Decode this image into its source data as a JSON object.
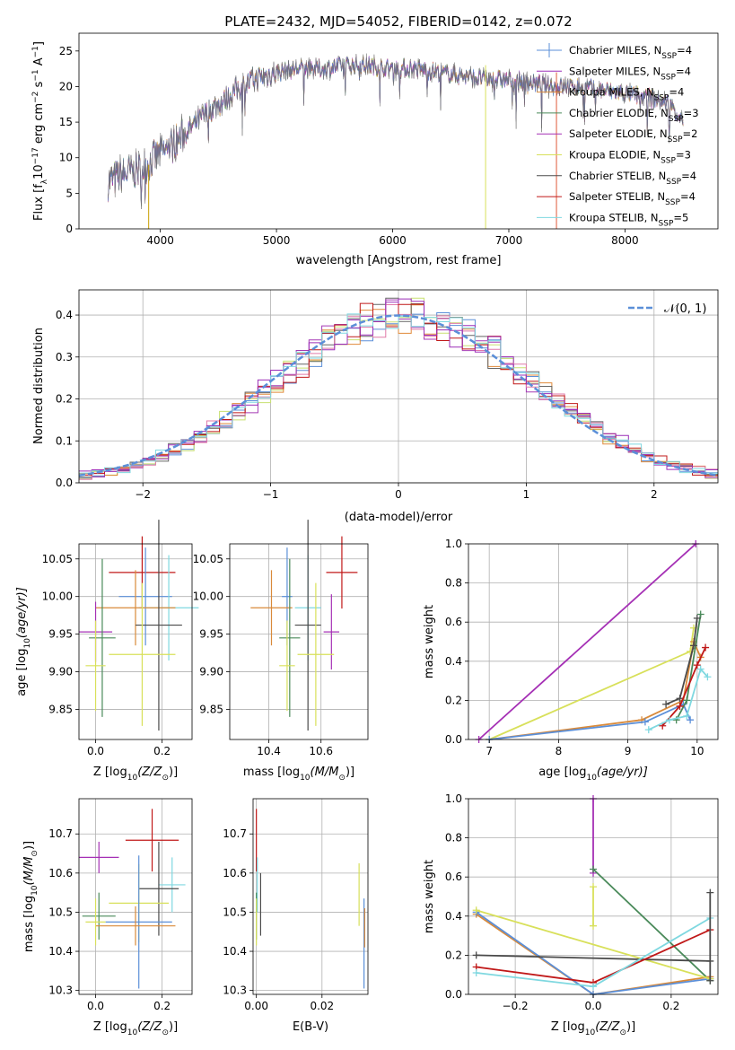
{
  "colors": [
    "#5b8fd8",
    "#9b2fb8",
    "#d98a3a",
    "#4a8a5a",
    "#a530b5",
    "#d8e05a",
    "#4a4a4a",
    "#c01818",
    "#7fd8e0"
  ],
  "hist_colors": [
    "#5b8fd8",
    "#c8e070",
    "#e08a3a",
    "#666666",
    "#a53ab5",
    "#e07aa8",
    "#c01818",
    "#9b2fb8",
    "#7fd8e0"
  ],
  "chart_data": [
    {
      "id": "spectrum",
      "type": "line",
      "title": "PLATE=2432, MJD=54052, FIBERID=0142, z=0.072",
      "xlabel": "wavelength [Angstrom, rest frame]",
      "ylabel": "Flux [f",
      "ylabel_parts": [
        "Flux [f",
        "λ",
        "10",
        "−17",
        " erg cm",
        "−2",
        " s",
        "−1",
        " A",
        "−1",
        "]"
      ],
      "xlim": [
        3300,
        8800
      ],
      "ylim": [
        0,
        27.5
      ],
      "xticks": [
        4000,
        5000,
        6000,
        7000,
        8000
      ],
      "xtick_labels": [
        "4000",
        "5000",
        "6000",
        "7000",
        "8000"
      ],
      "yticks": [
        0,
        5,
        10,
        15,
        20,
        25
      ],
      "ytick_labels": [
        "0",
        "5",
        "10",
        "15",
        "20",
        "25"
      ],
      "continuum": {
        "x": [
          3550,
          3650,
          3750,
          3850,
          3950,
          4050,
          4150,
          4250,
          4350,
          4450,
          4550,
          4650,
          4800,
          5000,
          5200,
          5400,
          5600,
          5800,
          6000,
          6200,
          6400,
          6600,
          6800,
          7000,
          7200,
          7400,
          7600,
          7800,
          8000,
          8200,
          8400,
          8500
        ],
        "y": [
          6.5,
          7.5,
          8,
          8.5,
          10,
          11,
          12.5,
          14,
          15.5,
          17,
          18,
          19.5,
          21,
          22,
          22.5,
          22.5,
          23,
          23,
          22.5,
          22.5,
          22,
          21.5,
          21,
          21,
          20.5,
          20,
          20,
          19.5,
          19,
          18.5,
          17.5,
          15
        ]
      },
      "spikes": [
        {
          "x": 3900,
          "ymin": 0,
          "ymax": 9
        },
        {
          "x": 6800,
          "ymin": 0,
          "ymax": 23
        },
        {
          "x": 7410,
          "ymin": 0,
          "ymax": 22
        }
      ],
      "legend_position": "upper-right",
      "legend": [
        {
          "main": "Chabrier MILES, N",
          "sub": "SSP",
          "tail": "=4"
        },
        {
          "main": "Salpeter MILES, N",
          "sub": "SSP",
          "tail": "=4"
        },
        {
          "main": "Kroupa MILES, N",
          "sub": "SSP",
          "tail": "=4"
        },
        {
          "main": "Chabrier ELODIE, N",
          "sub": "SSP",
          "tail": "=3"
        },
        {
          "main": "Salpeter ELODIE, N",
          "sub": "SSP",
          "tail": "=2"
        },
        {
          "main": "Kroupa ELODIE, N",
          "sub": "SSP",
          "tail": "=3"
        },
        {
          "main": "Chabrier STELIB, N",
          "sub": "SSP",
          "tail": "=4"
        },
        {
          "main": "Salpeter STELIB, N",
          "sub": "SSP",
          "tail": "=4"
        },
        {
          "main": "Kroupa STELIB, N",
          "sub": "SSP",
          "tail": "=5"
        }
      ]
    },
    {
      "id": "residuals",
      "type": "line",
      "xlabel": "(data-model)/error",
      "ylabel": "Normed distribution",
      "xlim": [
        -2.5,
        2.5
      ],
      "ylim": [
        0,
        0.46
      ],
      "xticks": [
        -2,
        -1,
        0,
        1,
        2
      ],
      "xtick_labels": [
        "−2",
        "−1",
        "0",
        "1",
        "2"
      ],
      "yticks": [
        0,
        0.1,
        0.2,
        0.3,
        0.4
      ],
      "ytick_labels": [
        "0.0",
        "0.1",
        "0.2",
        "0.3",
        "0.4"
      ],
      "bin_width": 0.1,
      "legend_label": "𝒩(0, 1)",
      "legend_position": "upper-right"
    },
    {
      "id": "age-vs-Z",
      "type": "scatter",
      "xlabel": "Z [log",
      "xlabel_parts": [
        "Z [log",
        "10",
        "(Z/Z",
        "⊙",
        ")]"
      ],
      "ylabel_parts": [
        "age  [log",
        "10",
        "(age/yr)]"
      ],
      "xlim": [
        -0.05,
        0.29
      ],
      "ylim": [
        9.81,
        10.07
      ],
      "xticks": [
        0.0,
        0.2
      ],
      "xtick_labels": [
        "0.0",
        "0.2"
      ],
      "yticks": [
        9.85,
        9.9,
        9.95,
        10.0,
        10.05
      ],
      "ytick_labels": [
        "9.85",
        "9.90",
        "9.95",
        "10.00",
        "10.05"
      ],
      "points": [
        {
          "x": 0.14,
          "y": 10.032,
          "xerr": 0.1,
          "yerr": 0.048,
          "c": 7
        },
        {
          "x": 0.15,
          "y": 10.0,
          "xerr": 0.08,
          "yerr": 0.065,
          "c": 0
        },
        {
          "x": 0.22,
          "y": 9.985,
          "xerr": 0.09,
          "yerr": 0.07,
          "c": 8
        },
        {
          "x": 0.12,
          "y": 9.985,
          "xerr": 0.12,
          "yerr": 0.05,
          "c": 2
        },
        {
          "x": 0.19,
          "y": 9.962,
          "xerr": 0.07,
          "yerr": 0.14,
          "c": 6
        },
        {
          "x": 0.0,
          "y": 9.953,
          "xerr": 0.05,
          "yerr": 0.04,
          "c": 4
        },
        {
          "x": 0.02,
          "y": 9.945,
          "xerr": 0.04,
          "yerr": 0.105,
          "c": 3
        },
        {
          "x": 0.14,
          "y": 9.923,
          "xerr": 0.1,
          "yerr": 0.095,
          "c": 5
        },
        {
          "x": 0.0,
          "y": 9.908,
          "xerr": 0.03,
          "yerr": 0.06,
          "c": 5
        }
      ]
    },
    {
      "id": "age-vs-mass",
      "type": "scatter",
      "xlabel_parts": [
        "mass [log",
        "10",
        "(M/M",
        "⊙",
        ")]"
      ],
      "xlim": [
        10.25,
        10.78
      ],
      "ylim": [
        9.81,
        10.07
      ],
      "xticks": [
        10.4,
        10.6
      ],
      "xtick_labels": [
        "10.4",
        "10.6"
      ],
      "yticks": [
        9.85,
        9.9,
        9.95,
        10.0,
        10.05
      ],
      "ytick_labels": [
        "9.85",
        "9.90",
        "9.95",
        "10.00",
        "10.05"
      ],
      "points": [
        {
          "x": 10.68,
          "y": 10.032,
          "xerr": 0.06,
          "yerr": 0.048,
          "c": 7
        },
        {
          "x": 10.47,
          "y": 10.0,
          "xerr": 0.02,
          "yerr": 0.065,
          "c": 0
        },
        {
          "x": 10.55,
          "y": 9.985,
          "xerr": 0.05,
          "yerr": 0.07,
          "c": 8
        },
        {
          "x": 10.41,
          "y": 9.985,
          "xerr": 0.08,
          "yerr": 0.05,
          "c": 2
        },
        {
          "x": 10.55,
          "y": 9.962,
          "xerr": 0.05,
          "yerr": 0.14,
          "c": 6
        },
        {
          "x": 10.64,
          "y": 9.953,
          "xerr": 0.03,
          "yerr": 0.05,
          "c": 4
        },
        {
          "x": 10.48,
          "y": 9.945,
          "xerr": 0.04,
          "yerr": 0.105,
          "c": 3
        },
        {
          "x": 10.58,
          "y": 9.923,
          "xerr": 0.07,
          "yerr": 0.095,
          "c": 5
        },
        {
          "x": 10.47,
          "y": 9.908,
          "xerr": 0.03,
          "yerr": 0.06,
          "c": 5
        }
      ]
    },
    {
      "id": "weight-vs-age",
      "type": "line",
      "xlabel_parts": [
        "age  [log",
        "10",
        "(age/yr)]"
      ],
      "ylabel": "mass weight",
      "xlim": [
        6.7,
        10.3
      ],
      "ylim": [
        0,
        1.0
      ],
      "xticks": [
        7,
        8,
        9,
        10
      ],
      "xtick_labels": [
        "7",
        "8",
        "9",
        "10"
      ],
      "yticks": [
        0,
        0.2,
        0.4,
        0.6,
        0.8,
        1.0
      ],
      "ytick_labels": [
        "0.0",
        "0.2",
        "0.4",
        "0.6",
        "0.8",
        "1.0"
      ],
      "series": [
        {
          "c": 4,
          "x": [
            6.85,
            9.98
          ],
          "y": [
            0.0,
            1.0
          ]
        },
        {
          "c": 5,
          "x": [
            7.0,
            9.9,
            9.95
          ],
          "y": [
            0.0,
            0.45,
            0.57
          ]
        },
        {
          "c": 2,
          "x": [
            7.0,
            9.2,
            9.8,
            9.95,
            10.05
          ],
          "y": [
            0.0,
            0.1,
            0.2,
            0.5,
            0.42
          ]
        },
        {
          "c": 0,
          "x": [
            7.0,
            9.25,
            9.8,
            9.9
          ],
          "y": [
            0.0,
            0.09,
            0.18,
            0.1
          ]
        },
        {
          "c": 3,
          "x": [
            9.7,
            9.85,
            10.05
          ],
          "y": [
            0.1,
            0.2,
            0.64
          ]
        },
        {
          "c": 6,
          "x": [
            9.55,
            9.75,
            9.95,
            10.0
          ],
          "y": [
            0.18,
            0.21,
            0.48,
            0.62
          ]
        },
        {
          "c": 7,
          "x": [
            9.5,
            9.75,
            10.0,
            10.12
          ],
          "y": [
            0.07,
            0.17,
            0.38,
            0.47
          ]
        },
        {
          "c": 8,
          "x": [
            9.3,
            9.6,
            9.85,
            10.05,
            10.15
          ],
          "y": [
            0.05,
            0.1,
            0.12,
            0.36,
            0.32
          ]
        }
      ]
    },
    {
      "id": "mass-vs-Z",
      "type": "scatter",
      "xlabel_parts": [
        "Z [log",
        "10",
        "(Z/Z",
        "⊙",
        ")]"
      ],
      "ylabel_parts": [
        "mass [log",
        "10",
        "(M/M",
        "⊙",
        ")]"
      ],
      "xlim": [
        -0.05,
        0.29
      ],
      "ylim": [
        10.29,
        10.79
      ],
      "xticks": [
        0.0,
        0.2
      ],
      "xtick_labels": [
        "0.0",
        "0.2"
      ],
      "yticks": [
        10.3,
        10.4,
        10.5,
        10.6,
        10.7
      ],
      "ytick_labels": [
        "10.3",
        "10.4",
        "10.5",
        "10.6",
        "10.7"
      ],
      "points": [
        {
          "x": 0.17,
          "y": 10.684,
          "xerr": 0.08,
          "yerr": 0.08,
          "c": 7
        },
        {
          "x": 0.01,
          "y": 10.64,
          "xerr": 0.06,
          "yerr": 0.04,
          "c": 4
        },
        {
          "x": 0.23,
          "y": 10.57,
          "xerr": 0.04,
          "yerr": 0.07,
          "c": 8
        },
        {
          "x": 0.19,
          "y": 10.56,
          "xerr": 0.06,
          "yerr": 0.12,
          "c": 6
        },
        {
          "x": 0.13,
          "y": 10.523,
          "xerr": 0.09,
          "yerr": 0.1,
          "c": 5
        },
        {
          "x": 0.01,
          "y": 10.49,
          "xerr": 0.05,
          "yerr": 0.06,
          "c": 3
        },
        {
          "x": 0.13,
          "y": 10.475,
          "xerr": 0.1,
          "yerr": 0.17,
          "c": 0
        },
        {
          "x": 0.12,
          "y": 10.465,
          "xerr": 0.12,
          "yerr": 0.05,
          "c": 2
        },
        {
          "x": 0.0,
          "y": 10.475,
          "xerr": 0.03,
          "yerr": 0.06,
          "c": 5
        }
      ]
    },
    {
      "id": "mass-vs-ebv",
      "type": "scatter",
      "xlabel": "E(B-V)",
      "xlim": [
        -0.001,
        0.034
      ],
      "ylim": [
        10.29,
        10.79
      ],
      "xticks": [
        0.0,
        0.02
      ],
      "xtick_labels": [
        "0.00",
        "0.02"
      ],
      "yticks": [
        10.3,
        10.4,
        10.5,
        10.6,
        10.7
      ],
      "ytick_labels": [
        "10.3",
        "10.4",
        "10.5",
        "10.6",
        "10.7"
      ],
      "points": [
        {
          "x": 0.0,
          "y": 10.684,
          "xerr": 0,
          "yerr": 0.08,
          "c": 7
        },
        {
          "x": 0.0003,
          "y": 10.57,
          "xerr": 0,
          "yerr": 0.07,
          "c": 8
        },
        {
          "x": 0.0,
          "y": 10.49,
          "xerr": 0,
          "yerr": 0.06,
          "c": 3
        },
        {
          "x": 0.0,
          "y": 10.475,
          "xerr": 0,
          "yerr": 0.06,
          "c": 5
        },
        {
          "x": 0.0013,
          "y": 10.52,
          "xerr": 0,
          "yerr": 0.08,
          "c": 6
        },
        {
          "x": 0.0313,
          "y": 10.545,
          "xerr": 0,
          "yerr": 0.08,
          "c": 5
        },
        {
          "x": 0.0328,
          "y": 10.42,
          "xerr": 0,
          "yerr": 0.115,
          "c": 0
        },
        {
          "x": 0.033,
          "y": 10.46,
          "xerr": 0,
          "yerr": 0.05,
          "c": 2
        }
      ]
    },
    {
      "id": "weight-vs-Z",
      "type": "line",
      "xlabel_parts": [
        "Z [log",
        "10",
        "(Z/Z",
        "⊙",
        ")]"
      ],
      "ylabel": "mass weight",
      "xlim": [
        -0.32,
        0.32
      ],
      "ylim": [
        0,
        1.0
      ],
      "xticks": [
        -0.2,
        0.0,
        0.2
      ],
      "xtick_labels": [
        "−0.2",
        "0.0",
        "0.2"
      ],
      "yticks": [
        0,
        0.2,
        0.4,
        0.6,
        0.8,
        1.0
      ],
      "ytick_labels": [
        "0.0",
        "0.2",
        "0.4",
        "0.6",
        "0.8",
        "1.0"
      ],
      "series": [
        {
          "c": 4,
          "x": [
            0.0,
            0.0
          ],
          "y": [
            0.62,
            1.0
          ]
        },
        {
          "c": 3,
          "x": [
            0.0,
            0.3
          ],
          "y": [
            0.64,
            0.07
          ]
        },
        {
          "c": 5,
          "x": [
            0.0,
            0.0
          ],
          "y": [
            0.35,
            0.55
          ]
        },
        {
          "c": 2,
          "x": [
            -0.3,
            0.0,
            0.3
          ],
          "y": [
            0.41,
            0.0,
            0.09
          ]
        },
        {
          "c": 0,
          "x": [
            -0.3,
            0.0,
            0.3
          ],
          "y": [
            0.42,
            0.0,
            0.08
          ]
        },
        {
          "c": 5,
          "x": [
            -0.3,
            0.3
          ],
          "y": [
            0.43,
            0.08
          ]
        },
        {
          "c": 6,
          "x": [
            -0.3,
            0.3
          ],
          "y": [
            0.2,
            0.17
          ]
        },
        {
          "c": 7,
          "x": [
            -0.3,
            0.0,
            0.3
          ],
          "y": [
            0.14,
            0.06,
            0.33
          ]
        },
        {
          "c": 8,
          "x": [
            -0.3,
            0.0,
            0.3
          ],
          "y": [
            0.11,
            0.04,
            0.39
          ]
        },
        {
          "c": 6,
          "x": [
            0.3,
            0.3
          ],
          "y": [
            0.07,
            0.52
          ]
        }
      ]
    }
  ]
}
